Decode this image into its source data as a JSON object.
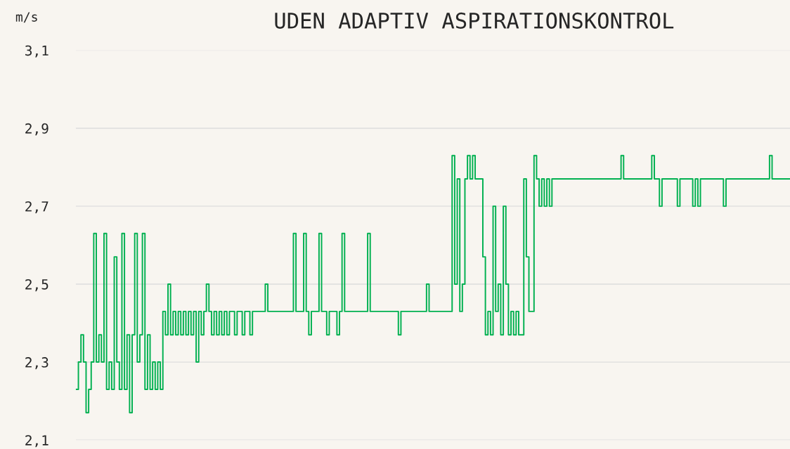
{
  "chart_data": {
    "type": "step",
    "title": "UDEN ADAPTIV ASPIRATIONSKONTROL",
    "ylabel": "m/s",
    "categories": [
      null,
      null,
      null,
      null,
      null,
      null,
      null,
      null,
      null,
      null,
      null,
      null,
      null,
      null,
      null,
      null,
      null,
      null,
      null,
      null,
      null,
      null,
      null,
      null,
      null,
      null,
      null,
      null,
      null,
      null,
      null,
      null,
      null,
      null,
      null,
      null,
      null,
      null,
      null,
      null,
      null,
      null,
      null,
      null,
      null,
      null,
      null,
      null,
      null,
      null,
      null,
      null,
      null,
      null,
      null,
      null,
      null,
      null,
      null,
      null,
      null,
      null,
      null,
      null,
      null,
      null,
      null,
      null,
      null,
      null,
      null,
      null,
      null,
      null,
      null,
      null,
      null,
      null,
      null,
      null,
      null,
      null,
      null,
      null,
      null,
      null,
      null,
      null,
      null,
      null,
      null,
      null,
      null,
      null,
      null,
      null,
      null,
      null,
      null,
      null,
      null,
      null,
      null,
      null,
      null,
      null,
      null,
      null,
      null,
      null,
      null,
      null,
      null,
      null,
      null,
      null,
      null,
      null,
      null,
      null,
      null,
      null,
      null,
      null,
      null,
      null,
      null,
      null,
      null,
      null,
      null,
      null,
      null,
      null,
      null,
      null,
      null,
      null,
      null,
      null,
      null,
      null,
      null,
      null,
      null,
      null,
      null,
      null,
      null,
      null,
      null,
      null,
      null,
      null,
      null,
      null,
      null,
      null,
      null,
      null,
      null,
      null,
      null,
      null,
      null,
      null,
      null,
      null,
      null,
      null,
      null,
      null,
      null,
      null,
      null,
      null,
      null,
      null,
      null,
      null,
      null,
      null,
      null,
      null,
      null,
      null,
      null,
      null,
      null,
      null,
      null,
      null,
      null,
      null,
      null,
      null,
      null,
      null,
      null,
      null,
      null,
      null,
      null,
      null,
      null,
      null,
      null,
      null,
      null,
      null,
      null,
      null,
      null,
      null,
      null,
      null,
      null,
      null,
      null,
      null,
      null,
      null,
      null,
      null,
      null,
      null,
      null,
      null,
      null,
      null,
      null,
      null,
      null,
      null,
      null,
      null,
      null,
      null,
      null,
      null,
      null,
      null,
      null,
      null,
      null,
      null,
      null,
      null,
      null,
      null,
      null,
      null,
      null,
      null,
      null,
      null,
      null,
      null,
      null,
      null,
      null,
      null,
      null,
      null,
      null,
      null,
      null,
      null,
      null,
      null,
      null,
      null,
      null,
      null,
      null,
      null,
      null,
      null,
      null,
      null
    ],
    "series": [
      {
        "color": "#00b050",
        "values": [
          2.23,
          2.3,
          2.37,
          2.3,
          2.17,
          2.23,
          2.3,
          2.63,
          2.3,
          2.37,
          2.3,
          2.63,
          2.23,
          2.3,
          2.23,
          2.57,
          2.3,
          2.23,
          2.63,
          2.23,
          2.37,
          2.17,
          2.37,
          2.63,
          2.3,
          2.37,
          2.63,
          2.23,
          2.37,
          2.23,
          2.3,
          2.23,
          2.3,
          2.23,
          2.43,
          2.37,
          2.5,
          2.37,
          2.43,
          2.37,
          2.43,
          2.37,
          2.43,
          2.37,
          2.43,
          2.37,
          2.43,
          2.3,
          2.43,
          2.37,
          2.43,
          2.5,
          2.43,
          2.37,
          2.43,
          2.37,
          2.43,
          2.37,
          2.43,
          2.37,
          2.43,
          2.43,
          2.37,
          2.43,
          2.43,
          2.37,
          2.43,
          2.43,
          2.37,
          2.43,
          2.43,
          2.43,
          2.43,
          2.43,
          2.5,
          2.43,
          2.43,
          2.43,
          2.43,
          2.43,
          2.43,
          2.43,
          2.43,
          2.43,
          2.43,
          2.63,
          2.43,
          2.43,
          2.43,
          2.63,
          2.43,
          2.37,
          2.43,
          2.43,
          2.43,
          2.63,
          2.43,
          2.43,
          2.37,
          2.43,
          2.43,
          2.43,
          2.37,
          2.43,
          2.63,
          2.43,
          2.43,
          2.43,
          2.43,
          2.43,
          2.43,
          2.43,
          2.43,
          2.43,
          2.63,
          2.43,
          2.43,
          2.43,
          2.43,
          2.43,
          2.43,
          2.43,
          2.43,
          2.43,
          2.43,
          2.43,
          2.37,
          2.43,
          2.43,
          2.43,
          2.43,
          2.43,
          2.43,
          2.43,
          2.43,
          2.43,
          2.43,
          2.5,
          2.43,
          2.43,
          2.43,
          2.43,
          2.43,
          2.43,
          2.43,
          2.43,
          2.43,
          2.83,
          2.5,
          2.77,
          2.43,
          2.5,
          2.77,
          2.83,
          2.77,
          2.83,
          2.77,
          2.77,
          2.77,
          2.57,
          2.37,
          2.43,
          2.37,
          2.7,
          2.43,
          2.5,
          2.37,
          2.7,
          2.5,
          2.37,
          2.43,
          2.37,
          2.43,
          2.37,
          2.37,
          2.77,
          2.57,
          2.43,
          2.43,
          2.83,
          2.77,
          2.7,
          2.77,
          2.7,
          2.77,
          2.7,
          2.77,
          2.77,
          2.77,
          2.77,
          2.77,
          2.77,
          2.77,
          2.77,
          2.77,
          2.77,
          2.77,
          2.77,
          2.77,
          2.77,
          2.77,
          2.77,
          2.77,
          2.77,
          2.77,
          2.77,
          2.77,
          2.77,
          2.77,
          2.77,
          2.77,
          2.77,
          2.77,
          2.83,
          2.77,
          2.77,
          2.77,
          2.77,
          2.77,
          2.77,
          2.77,
          2.77,
          2.77,
          2.77,
          2.77,
          2.83,
          2.77,
          2.77,
          2.7,
          2.77,
          2.77,
          2.77,
          2.77,
          2.77,
          2.77,
          2.7,
          2.77,
          2.77,
          2.77,
          2.77,
          2.77,
          2.7,
          2.77,
          2.7,
          2.77,
          2.77,
          2.77,
          2.77,
          2.77,
          2.77,
          2.77,
          2.77,
          2.77,
          2.7,
          2.77,
          2.77,
          2.77,
          2.77,
          2.77,
          2.77,
          2.77,
          2.77,
          2.77,
          2.77,
          2.77,
          2.77,
          2.77,
          2.77,
          2.77,
          2.77,
          2.77,
          2.83,
          2.77,
          2.77,
          2.77,
          2.77,
          2.77,
          2.77,
          2.77,
          2.77
        ]
      }
    ],
    "ylim": [
      2.1,
      3.1
    ],
    "yticks": [
      {
        "value": 2.1,
        "label": "2,1"
      },
      {
        "value": 2.3,
        "label": "2,3"
      },
      {
        "value": 2.5,
        "label": "2,5"
      },
      {
        "value": 2.7,
        "label": "2,7"
      },
      {
        "value": 2.9,
        "label": "2,9"
      },
      {
        "value": 3.1,
        "label": "3,1"
      }
    ],
    "grid": "y"
  }
}
